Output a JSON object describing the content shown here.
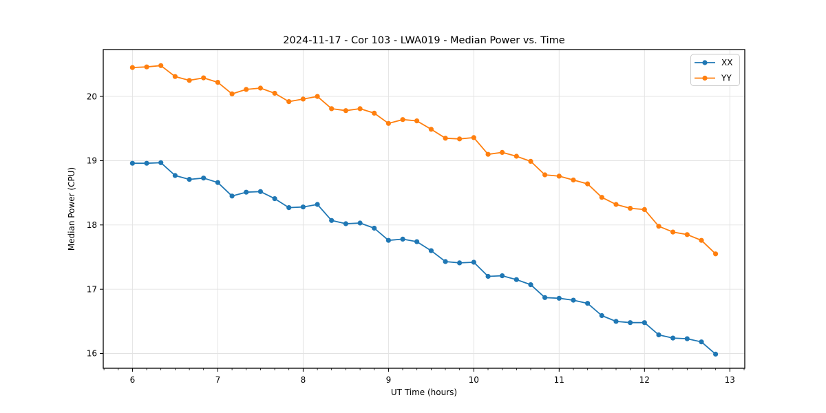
{
  "figure": {
    "background": "#ffffff",
    "spine_color": "#000000",
    "grid_color": "#e2e2e2"
  },
  "chart_data": {
    "type": "line",
    "title": "2024-11-17 - Cor 103 - LWA019 - Median Power vs. Time",
    "xlabel": "UT Time (hours)",
    "ylabel": "Median Power (CPU)",
    "xlim": [
      5.658,
      13.175
    ],
    "ylim": [
      15.77,
      20.73
    ],
    "x_ticks": [
      6,
      7,
      8,
      9,
      10,
      11,
      12,
      13
    ],
    "y_ticks": [
      16,
      17,
      18,
      19,
      20
    ],
    "x_minor_step": 0.16667,
    "grid": true,
    "legend_position": "upper right",
    "marker": "circle",
    "x": [
      6.0,
      6.167,
      6.333,
      6.5,
      6.667,
      6.833,
      7.0,
      7.167,
      7.333,
      7.5,
      7.667,
      7.833,
      8.0,
      8.167,
      8.333,
      8.5,
      8.667,
      8.833,
      9.0,
      9.167,
      9.333,
      9.5,
      9.667,
      9.833,
      10.0,
      10.167,
      10.333,
      10.5,
      10.667,
      10.833,
      11.0,
      11.167,
      11.333,
      11.5,
      11.667,
      11.833,
      12.0,
      12.167,
      12.333,
      12.5,
      12.667,
      12.833
    ],
    "series": [
      {
        "name": "XX",
        "color": "#1f77b4",
        "values": [
          18.96,
          18.96,
          18.97,
          18.77,
          18.71,
          18.73,
          18.66,
          18.45,
          18.51,
          18.52,
          18.41,
          18.27,
          18.28,
          18.32,
          18.07,
          18.02,
          18.03,
          17.95,
          17.76,
          17.78,
          17.74,
          17.6,
          17.43,
          17.41,
          17.42,
          17.2,
          17.21,
          17.15,
          17.07,
          16.87,
          16.86,
          16.83,
          16.78,
          16.59,
          16.5,
          16.48,
          16.48,
          16.29,
          16.24,
          16.23,
          16.18,
          15.99
        ]
      },
      {
        "name": "YY",
        "color": "#ff7f0e",
        "values": [
          20.45,
          20.46,
          20.48,
          20.31,
          20.25,
          20.29,
          20.22,
          20.04,
          20.11,
          20.13,
          20.05,
          19.92,
          19.96,
          20.0,
          19.81,
          19.78,
          19.81,
          19.74,
          19.58,
          19.64,
          19.62,
          19.49,
          19.35,
          19.34,
          19.36,
          19.1,
          19.13,
          19.07,
          18.99,
          18.78,
          18.76,
          18.7,
          18.64,
          18.43,
          18.32,
          18.26,
          18.24,
          17.98,
          17.89,
          17.85,
          17.76,
          17.55
        ]
      }
    ]
  }
}
